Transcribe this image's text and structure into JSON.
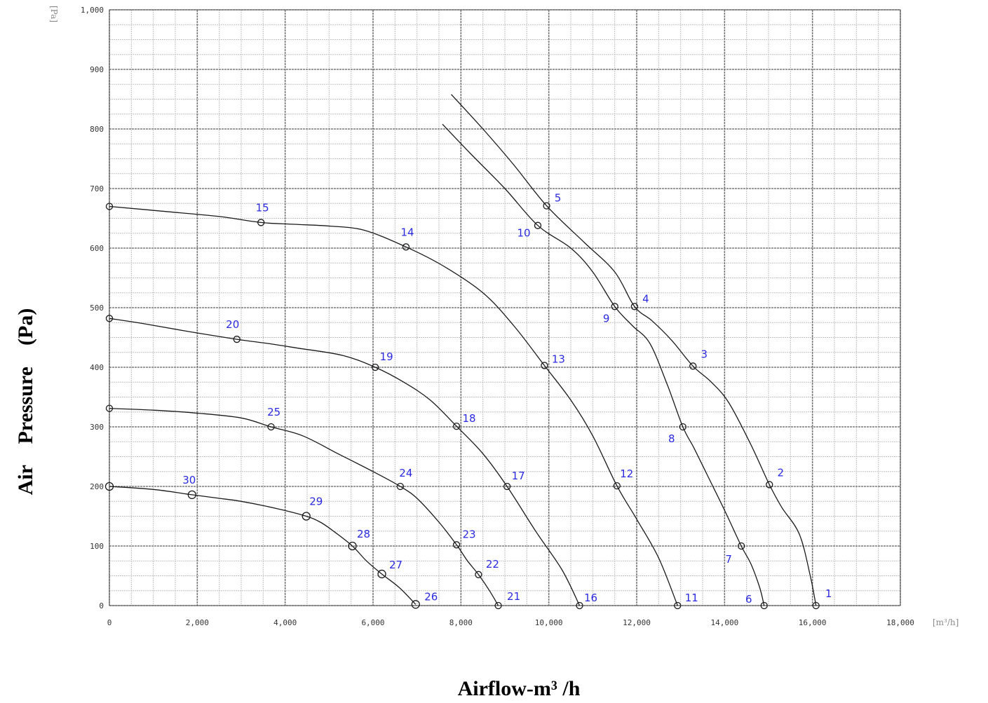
{
  "chart_data": {
    "type": "line",
    "xlabel": "Airflow-m³ /h",
    "ylabel": "Air    Pressure    (Pa)",
    "x_unit": "[m³/h]",
    "y_unit": "[Pa]",
    "xlim": [
      0,
      18000
    ],
    "ylim": [
      0,
      1000
    ],
    "x_ticks": [
      0,
      2000,
      4000,
      6000,
      8000,
      10000,
      12000,
      14000,
      16000,
      18000
    ],
    "x_tick_labels": [
      "0",
      "2,000",
      "4,000",
      "6,000",
      "8,000",
      "10,000",
      "12,000",
      "14,000",
      "16,000",
      "18,000"
    ],
    "y_ticks": [
      0,
      100,
      200,
      300,
      400,
      500,
      600,
      700,
      800,
      900,
      1000
    ],
    "y_tick_labels": [
      "0",
      "100",
      "200",
      "300",
      "400",
      "500",
      "600",
      "700",
      "800",
      "900",
      "1,000"
    ],
    "grid": true,
    "series": [
      {
        "markers": [
          {
            "label": "1",
            "x": 16080,
            "y": 0
          },
          {
            "label": "2",
            "x": 15020,
            "y": 203
          },
          {
            "label": "3",
            "x": 13280,
            "y": 402
          },
          {
            "label": "4",
            "x": 11950,
            "y": 502
          },
          {
            "label": "5",
            "x": 9950,
            "y": 671
          }
        ],
        "curve": [
          [
            16080,
            0
          ],
          [
            15950,
            50
          ],
          [
            15700,
            120
          ],
          [
            15300,
            165
          ],
          [
            15020,
            203
          ],
          [
            14600,
            270
          ],
          [
            14100,
            340
          ],
          [
            13700,
            375
          ],
          [
            13280,
            402
          ],
          [
            12800,
            445
          ],
          [
            12350,
            478
          ],
          [
            11950,
            502
          ],
          [
            11500,
            560
          ],
          [
            10800,
            610
          ],
          [
            9950,
            671
          ],
          [
            9200,
            740
          ],
          [
            8500,
            800
          ],
          [
            7780,
            858
          ]
        ]
      },
      {
        "markers": [
          {
            "label": "6",
            "x": 14900,
            "y": 0
          },
          {
            "label": "7",
            "x": 14380,
            "y": 100
          },
          {
            "label": "8",
            "x": 13050,
            "y": 300
          },
          {
            "label": "9",
            "x": 11500,
            "y": 502
          },
          {
            "label": "10",
            "x": 9750,
            "y": 638
          }
        ],
        "curve": [
          [
            14900,
            0
          ],
          [
            14800,
            30
          ],
          [
            14600,
            70
          ],
          [
            14380,
            100
          ],
          [
            14000,
            160
          ],
          [
            13600,
            220
          ],
          [
            13300,
            265
          ],
          [
            13050,
            300
          ],
          [
            12700,
            370
          ],
          [
            12300,
            440
          ],
          [
            11900,
            470
          ],
          [
            11500,
            502
          ],
          [
            11000,
            560
          ],
          [
            10500,
            600
          ],
          [
            9750,
            638
          ],
          [
            9000,
            700
          ],
          [
            8200,
            760
          ],
          [
            7580,
            808
          ]
        ]
      },
      {
        "markers": [
          {
            "label": "11",
            "x": 12930,
            "y": 0
          },
          {
            "label": "12",
            "x": 11550,
            "y": 201
          },
          {
            "label": "13",
            "x": 9900,
            "y": 403
          },
          {
            "label": "14",
            "x": 6750,
            "y": 602
          },
          {
            "label": "15",
            "x": 3450,
            "y": 643
          },
          {
            "label": "",
            "x": 0,
            "y": 670
          }
        ],
        "curve": [
          [
            12930,
            0
          ],
          [
            12500,
            80
          ],
          [
            12000,
            145
          ],
          [
            11550,
            201
          ],
          [
            11000,
            285
          ],
          [
            10500,
            345
          ],
          [
            9900,
            403
          ],
          [
            9200,
            470
          ],
          [
            8500,
            525
          ],
          [
            7600,
            570
          ],
          [
            6750,
            602
          ],
          [
            5800,
            630
          ],
          [
            5000,
            637
          ],
          [
            4200,
            640
          ],
          [
            3450,
            643
          ],
          [
            2500,
            653
          ],
          [
            1200,
            662
          ],
          [
            0,
            670
          ]
        ]
      },
      {
        "markers": [
          {
            "label": "16",
            "x": 10700,
            "y": 0
          },
          {
            "label": "17",
            "x": 9050,
            "y": 200
          },
          {
            "label": "18",
            "x": 7900,
            "y": 301
          },
          {
            "label": "19",
            "x": 6050,
            "y": 400
          },
          {
            "label": "20",
            "x": 2900,
            "y": 447
          },
          {
            "label": "",
            "x": 0,
            "y": 482
          }
        ],
        "curve": [
          [
            10700,
            0
          ],
          [
            10300,
            60
          ],
          [
            9700,
            125
          ],
          [
            9050,
            200
          ],
          [
            8500,
            255
          ],
          [
            7900,
            301
          ],
          [
            7300,
            345
          ],
          [
            6700,
            375
          ],
          [
            6050,
            400
          ],
          [
            5300,
            420
          ],
          [
            4300,
            432
          ],
          [
            3600,
            440
          ],
          [
            2900,
            447
          ],
          [
            1800,
            460
          ],
          [
            800,
            473
          ],
          [
            0,
            482
          ]
        ]
      },
      {
        "markers": [
          {
            "label": "21",
            "x": 8850,
            "y": 0
          },
          {
            "label": "22",
            "x": 8400,
            "y": 52
          },
          {
            "label": "23",
            "x": 7900,
            "y": 102
          },
          {
            "label": "24",
            "x": 6620,
            "y": 200
          },
          {
            "label": "25",
            "x": 3680,
            "y": 300
          },
          {
            "label": "",
            "x": 0,
            "y": 331
          }
        ],
        "curve": [
          [
            8850,
            0
          ],
          [
            8650,
            25
          ],
          [
            8400,
            52
          ],
          [
            8150,
            75
          ],
          [
            7900,
            102
          ],
          [
            7500,
            140
          ],
          [
            7000,
            180
          ],
          [
            6620,
            200
          ],
          [
            6000,
            225
          ],
          [
            5200,
            255
          ],
          [
            4400,
            285
          ],
          [
            3680,
            300
          ],
          [
            3000,
            315
          ],
          [
            2000,
            323
          ],
          [
            1000,
            328
          ],
          [
            0,
            331
          ]
        ]
      },
      {
        "markers": [
          {
            "label": "26",
            "x": 6970,
            "y": 2
          },
          {
            "label": "27",
            "x": 6200,
            "y": 53
          },
          {
            "label": "28",
            "x": 5530,
            "y": 100
          },
          {
            "label": "29",
            "x": 4480,
            "y": 150
          },
          {
            "label": "30",
            "x": 1880,
            "y": 186
          },
          {
            "label": "",
            "x": 0,
            "y": 200
          }
        ],
        "curve": [
          [
            6970,
            2
          ],
          [
            6600,
            30
          ],
          [
            6200,
            53
          ],
          [
            5850,
            75
          ],
          [
            5530,
            100
          ],
          [
            5100,
            125
          ],
          [
            4800,
            140
          ],
          [
            4480,
            150
          ],
          [
            3800,
            163
          ],
          [
            3000,
            175
          ],
          [
            2500,
            180
          ],
          [
            1880,
            186
          ],
          [
            1000,
            195
          ],
          [
            0,
            200
          ]
        ]
      }
    ]
  }
}
